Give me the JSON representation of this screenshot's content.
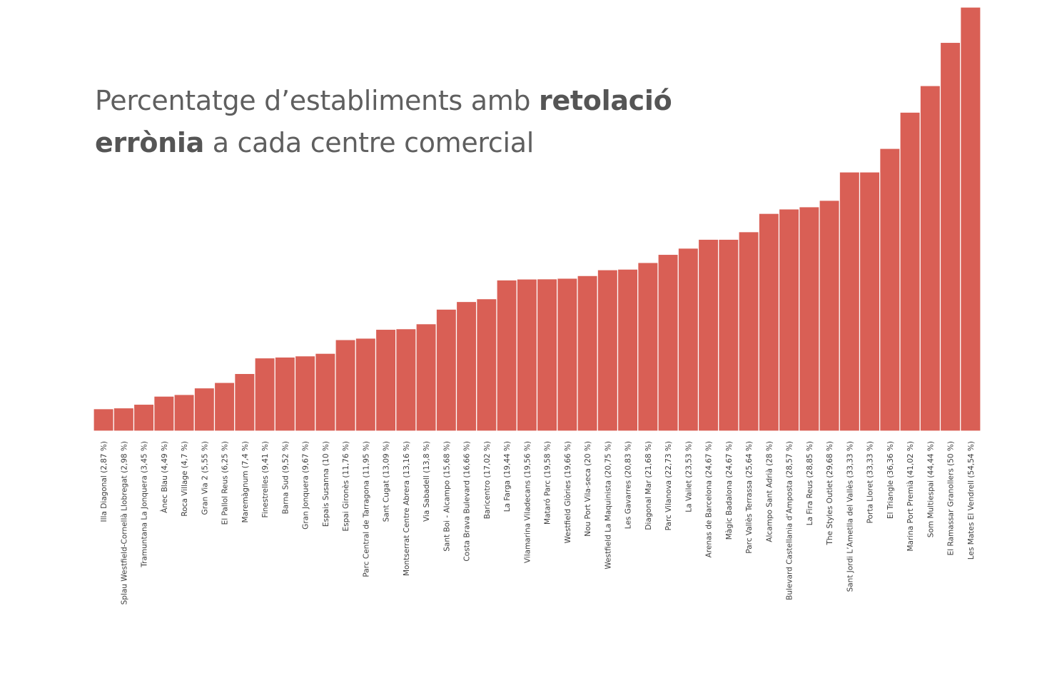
{
  "title": {
    "part1": "Percentatge d’establiments amb ",
    "part2_bold": "retolació",
    "part3_bold": "errònia",
    "part4": " a cada centre comercial"
  },
  "colors": {
    "bar": "#d95f55",
    "bar_stroke": "#ffffff",
    "text": "#5f5f5f"
  },
  "chart_data": {
    "type": "bar",
    "title": "Percentatge d’establiments amb retolació errònia a cada centre comercial",
    "xlabel": "",
    "ylabel": "",
    "ylim": [
      0,
      54.54
    ],
    "grid": false,
    "categories": [
      "Illa Diagonal (2,87 %)",
      "Splau Westfield-Cornellà Llobregat (2,98 %)",
      "Tramuntana La Jonquera (3,45 %)",
      "Ànec Blau (4,49 %)",
      "Roca Village (4,7 %)",
      "Gran Via 2 (5,55 %)",
      "El Pallol Reus (6,25 %)",
      "Maremàgnum (7,4 %)",
      "Finestrelles (9,41 %)",
      "Barna Sud (9,52 %)",
      "Gran Jonquera (9,67 %)",
      "Espais Susanna (10 %)",
      "Espai Gironès (11,76 %)",
      "Parc Central de Tarragona (11,95 %)",
      "Sant Cugat (13,09 %)",
      "Montserrat Centre Abrera (13,16 %)",
      "Via Sabadell (13,8 %)",
      "Sant Boi - Alcampo (15,68 %)",
      "Costa Brava Bulevard (16,66 %)",
      "Baricentro (17,02 %)",
      "La Farga (19,44 %)",
      "Vilamarina Viladecans (19,56 %)",
      "Mataró Parc (19,58 %)",
      "Westfield Glòries (19,66 %)",
      "Nou Port Vila-seca (20 %)",
      "Westfield La Maquinista (20,75 %)",
      "Les Gavarres (20,83 %)",
      "Diagonal Mar (21,68 %)",
      "Parc Vilanova (22,73 %)",
      "La Vailet (23,53 %)",
      "Arenas de Barcelona (24,67 %)",
      "Màgic Badalona (24,67 %)",
      "Parc Vallès Terrassa (25,64 %)",
      "Alcampo Sant Adrià (28 %)",
      "Bulevard Castellania d’Amposta (28,57 %)",
      "La Fira Reus (28,85 %)",
      "The Styles Outlet (29,68 %)",
      "Sant Jordi L’Ametlla del Vallès (33,33 %)",
      "Porta Lloret (33,33 %)",
      "El Triangle (36,36 %)",
      "Marina Port Premià (41,02 %)",
      "Som Multiespai (44,44 %)",
      "El Ramassar Granollers (50 %)",
      "Les Mates El Vendrell (54,54 %)"
    ],
    "values": [
      2.87,
      2.98,
      3.45,
      4.49,
      4.7,
      5.55,
      6.25,
      7.4,
      9.41,
      9.52,
      9.67,
      10,
      11.76,
      11.95,
      13.09,
      13.16,
      13.8,
      15.68,
      16.66,
      17.02,
      19.44,
      19.56,
      19.58,
      19.66,
      20,
      20.75,
      20.83,
      21.68,
      22.73,
      23.53,
      24.67,
      24.67,
      25.64,
      28,
      28.57,
      28.85,
      29.68,
      33.33,
      33.33,
      36.36,
      41.02,
      44.44,
      50,
      54.54
    ]
  }
}
